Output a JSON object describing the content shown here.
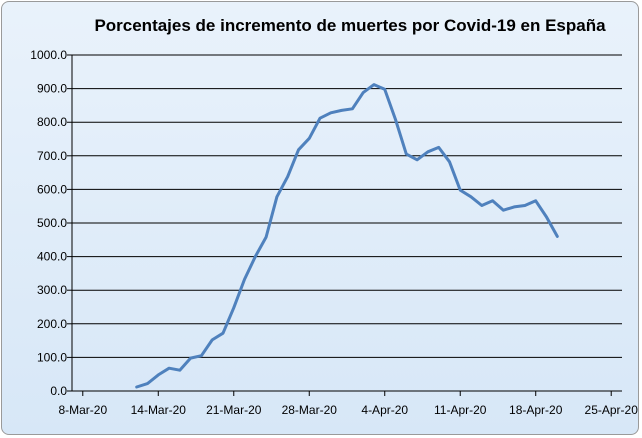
{
  "colors": {
    "line": "#4f81bd",
    "grid": "#000000",
    "background": "#dfeaf7"
  },
  "chart_data": {
    "type": "line",
    "title": "Porcentajes de incremento de muertes por Covid-19 en España",
    "xlabel": "",
    "ylabel": "",
    "grid": true,
    "legend": "none",
    "x_ticks": [
      "8-Mar-20",
      "14-Mar-20",
      "21-Mar-20",
      "28-Mar-20",
      "4-Apr-20",
      "11-Apr-20",
      "18-Apr-20",
      "25-Apr-20"
    ],
    "xlim": [
      "2020-03-07",
      "2020-04-27"
    ],
    "ylim": [
      0,
      1000
    ],
    "y_ticks": [
      "0.0",
      "100.0",
      "200.0",
      "300.0",
      "400.0",
      "500.0",
      "600.0",
      "700.0",
      "800.0",
      "900.0",
      "1000.0"
    ],
    "series": [
      {
        "x": [
          "2020-03-13",
          "2020-03-14",
          "2020-03-15",
          "2020-03-16",
          "2020-03-17",
          "2020-03-18",
          "2020-03-19",
          "2020-03-20",
          "2020-03-21",
          "2020-03-22",
          "2020-03-23",
          "2020-03-24",
          "2020-03-25",
          "2020-03-26",
          "2020-03-27",
          "2020-03-28",
          "2020-03-29",
          "2020-03-30",
          "2020-03-31",
          "2020-04-01",
          "2020-04-02",
          "2020-04-03",
          "2020-04-04",
          "2020-04-05",
          "2020-04-06",
          "2020-04-07",
          "2020-04-08",
          "2020-04-09",
          "2020-04-10",
          "2020-04-11",
          "2020-04-12",
          "2020-04-13",
          "2020-04-14",
          "2020-04-15",
          "2020-04-16",
          "2020-04-17",
          "2020-04-18",
          "2020-04-19",
          "2020-04-20",
          "2020-04-21"
        ],
        "values": [
          12,
          22,
          48,
          68,
          62,
          98,
          105,
          152,
          172,
          248,
          332,
          400,
          458,
          578,
          638,
          718,
          752,
          812,
          828,
          835,
          840,
          888,
          912,
          898,
          808,
          705,
          688,
          712,
          725,
          682,
          598,
          578,
          552,
          566,
          538,
          548,
          552,
          566,
          518,
          460
        ]
      }
    ]
  }
}
